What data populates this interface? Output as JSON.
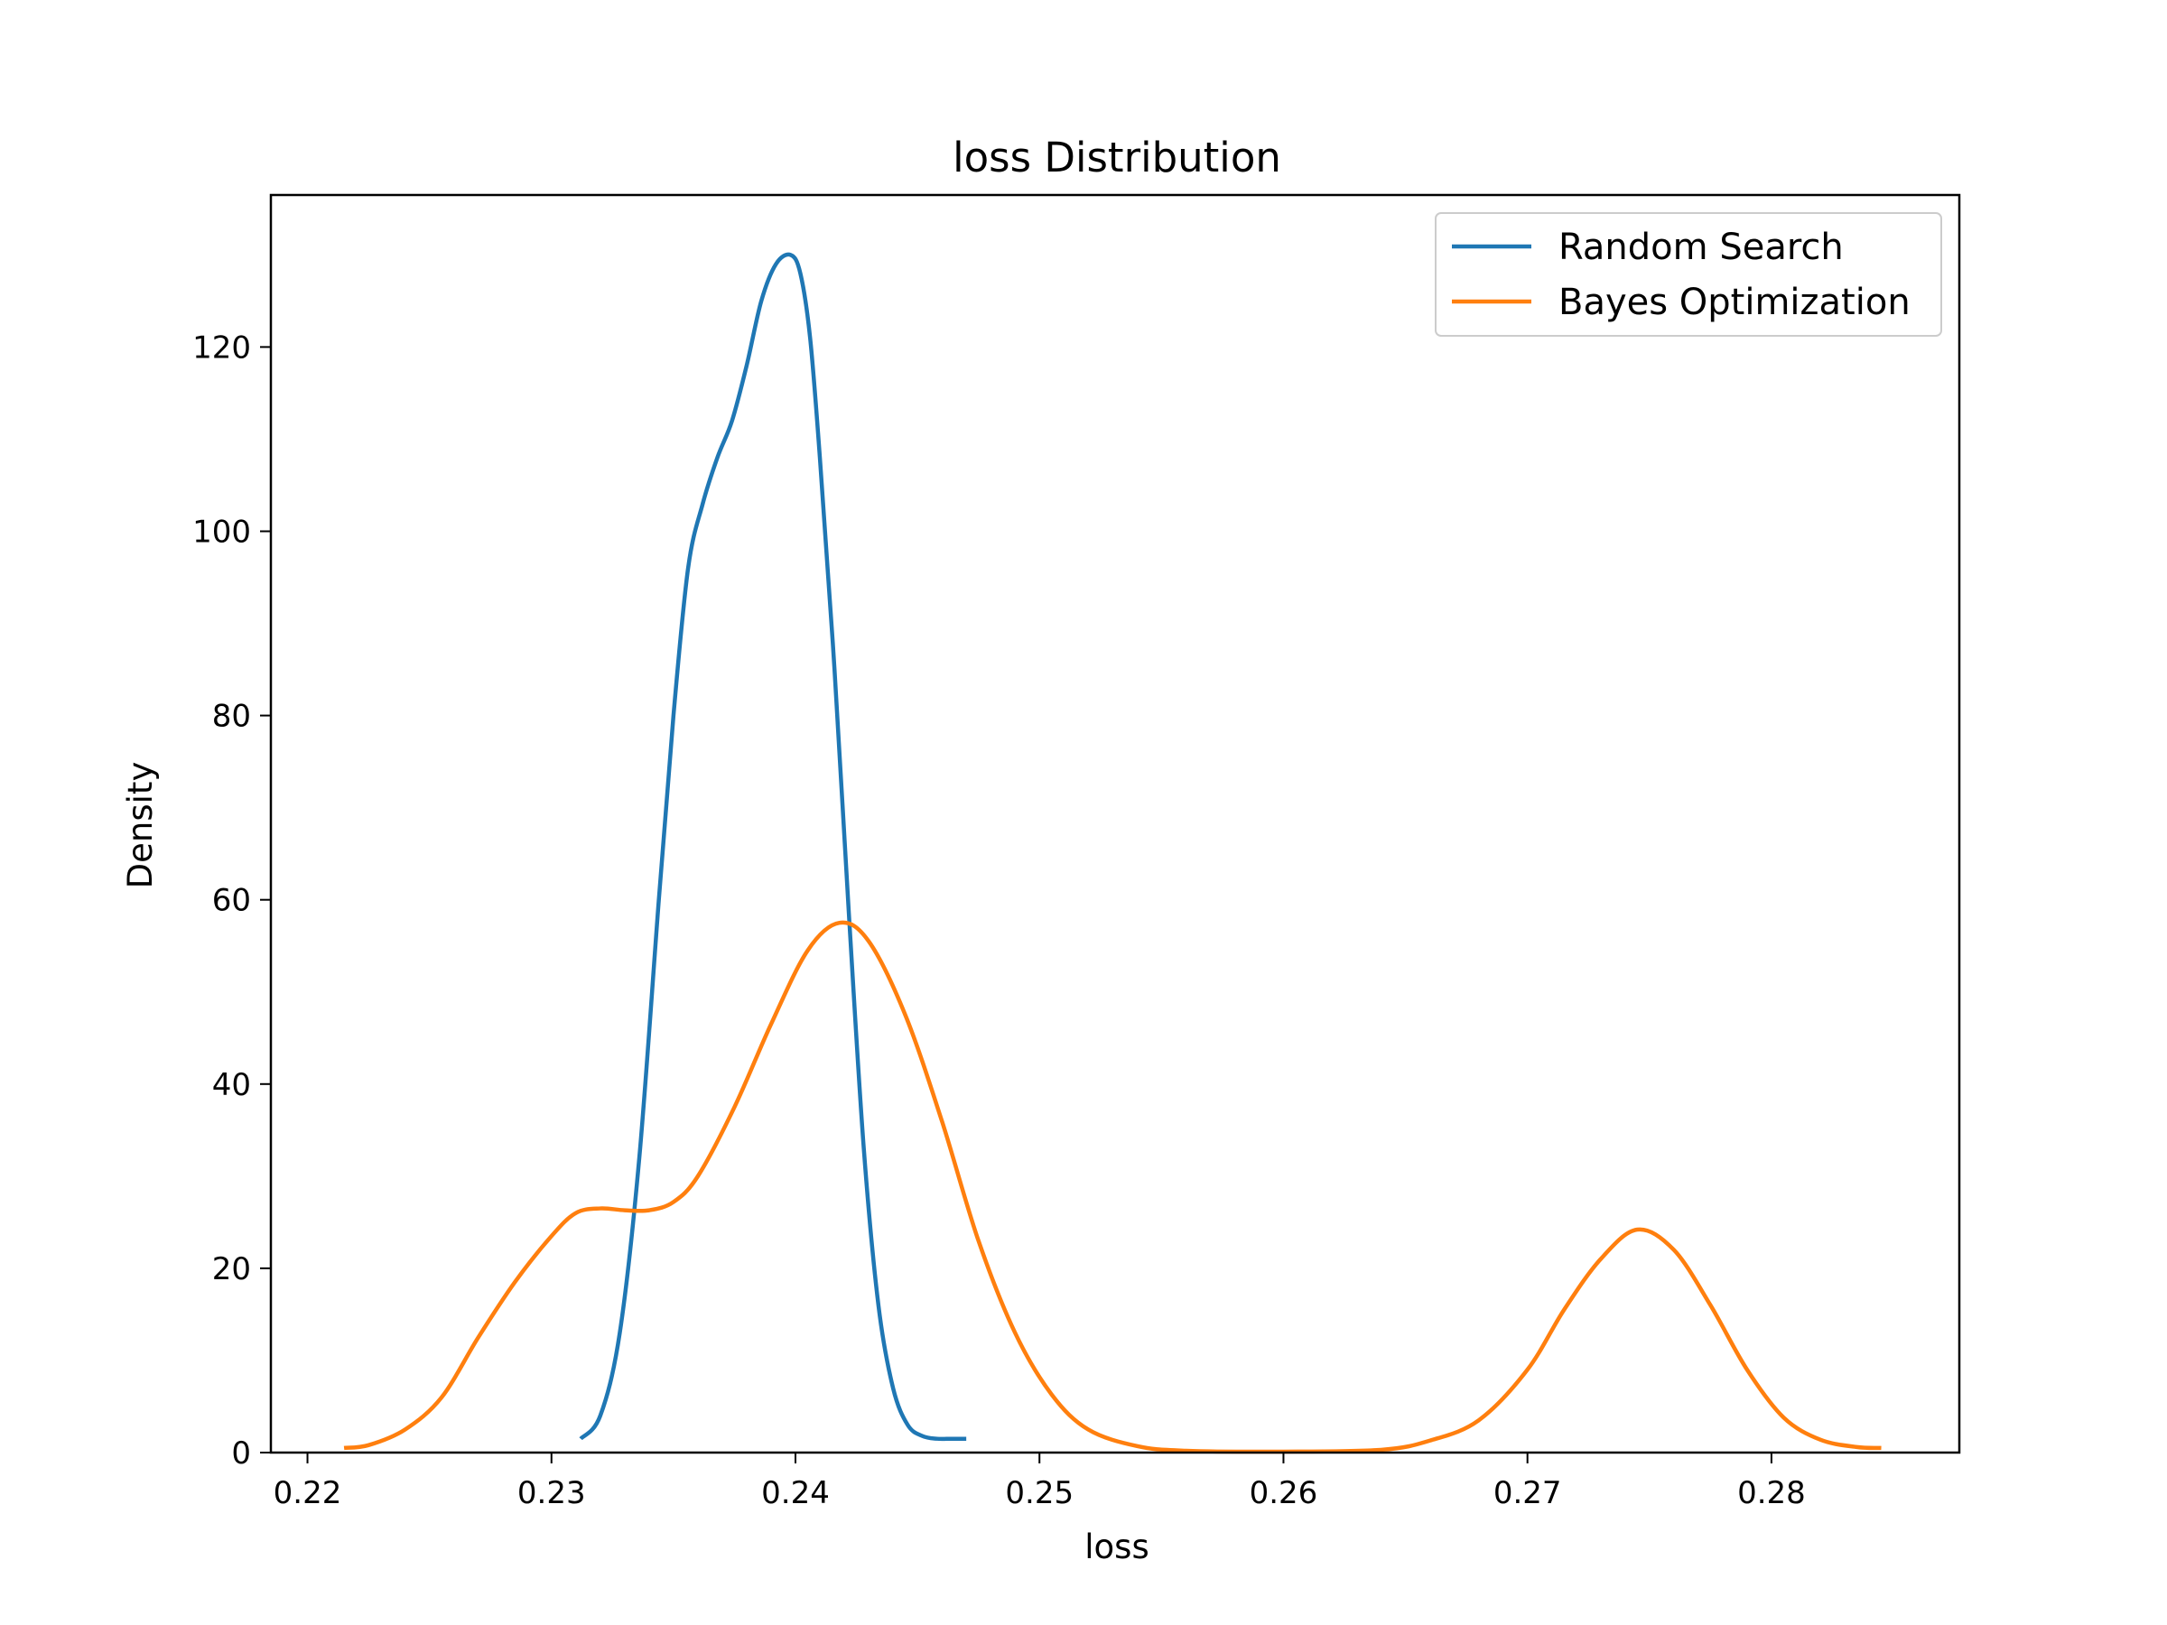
{
  "chart_data": {
    "type": "line",
    "title": "loss Distribution",
    "xlabel": "loss",
    "ylabel": "Density",
    "xlim": [
      0.2185,
      0.2877
    ],
    "ylim": [
      0,
      136.5
    ],
    "xticks": [
      0.22,
      0.23,
      0.24,
      0.25,
      0.26,
      0.27,
      0.28
    ],
    "xtick_labels": [
      "0.22",
      "0.23",
      "0.24",
      "0.25",
      "0.26",
      "0.27",
      "0.28"
    ],
    "yticks": [
      0,
      20,
      40,
      60,
      80,
      100,
      120
    ],
    "ytick_labels": [
      "0",
      "20",
      "40",
      "60",
      "80",
      "100",
      "120"
    ],
    "grid": false,
    "legend_position": "top-right",
    "series": [
      {
        "name": "Random Search",
        "color": "#1f77b4",
        "x": [
          0.2312,
          0.232,
          0.2328,
          0.2336,
          0.2344,
          0.235,
          0.2356,
          0.2362,
          0.2368,
          0.2374,
          0.238,
          0.2386,
          0.2392,
          0.2398,
          0.2402,
          0.2406,
          0.241,
          0.2416,
          0.2422,
          0.2428,
          0.2434,
          0.244,
          0.2446,
          0.2452,
          0.2458,
          0.2464,
          0.247
        ],
        "y": [
          1.5,
          4,
          13,
          32,
          60,
          80,
          96,
          103,
          108,
          112,
          118,
          125,
          129,
          130,
          128,
          121,
          108,
          85,
          58,
          33,
          16,
          7,
          3,
          1.8,
          1.5,
          1.5,
          1.5
        ]
      },
      {
        "name": "Bayes Optimization",
        "color": "#ff7f0e",
        "x": [
          0.2215,
          0.2225,
          0.224,
          0.2255,
          0.227,
          0.2285,
          0.23,
          0.231,
          0.232,
          0.233,
          0.234,
          0.235,
          0.236,
          0.2375,
          0.239,
          0.2405,
          0.2418,
          0.243,
          0.2445,
          0.246,
          0.2475,
          0.249,
          0.2505,
          0.252,
          0.254,
          0.256,
          0.26,
          0.264,
          0.266,
          0.268,
          0.27,
          0.2715,
          0.273,
          0.2745,
          0.276,
          0.2775,
          0.279,
          0.2805,
          0.282,
          0.2835,
          0.2845
        ],
        "y": [
          0.5,
          0.8,
          2.5,
          6,
          12.5,
          18.5,
          23.5,
          26,
          26.5,
          26.3,
          26.3,
          27.2,
          30,
          37.5,
          46.5,
          54.5,
          57.5,
          55.5,
          47.5,
          36,
          23,
          13,
          6.3,
          2.5,
          0.7,
          0.2,
          0.1,
          0.3,
          1.3,
          3.5,
          9,
          15.5,
          21,
          24.2,
          22,
          16,
          9,
          3.8,
          1.4,
          0.6,
          0.5
        ]
      }
    ]
  }
}
